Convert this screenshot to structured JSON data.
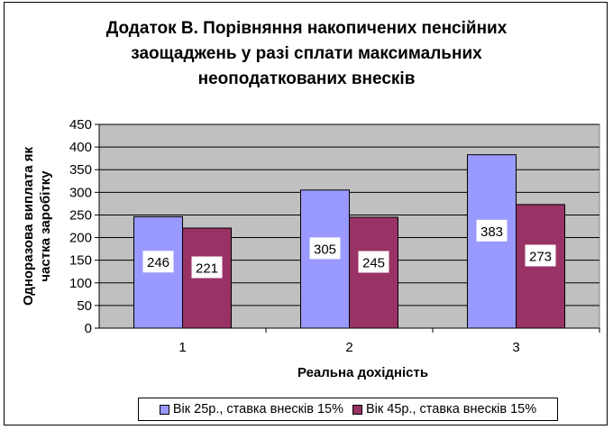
{
  "chart_data": {
    "type": "bar",
    "title_lines": [
      "Додаток В. Порівняння накопичених пенсійних",
      "заощаджень у разі сплати максимальних",
      "неоподаткованих внесків"
    ],
    "xlabel": "Реальна дохідність",
    "ylabel_lines": [
      "Одноразова виплата як",
      "частка заробітку"
    ],
    "categories": [
      "1",
      "2",
      "3"
    ],
    "ylim": [
      0,
      450
    ],
    "yticks": [
      0,
      50,
      100,
      150,
      200,
      250,
      300,
      350,
      400,
      450
    ],
    "grid": true,
    "legend_position": "bottom",
    "plot_background": "#c0c0c0",
    "series": [
      {
        "name": "Вік 25р., ставка внесків 15%",
        "color": "#9999ff",
        "values": [
          246,
          305,
          383
        ]
      },
      {
        "name": "Вік 45р., ставка внесків 15%",
        "color": "#993366",
        "values": [
          221,
          245,
          273
        ]
      }
    ]
  }
}
